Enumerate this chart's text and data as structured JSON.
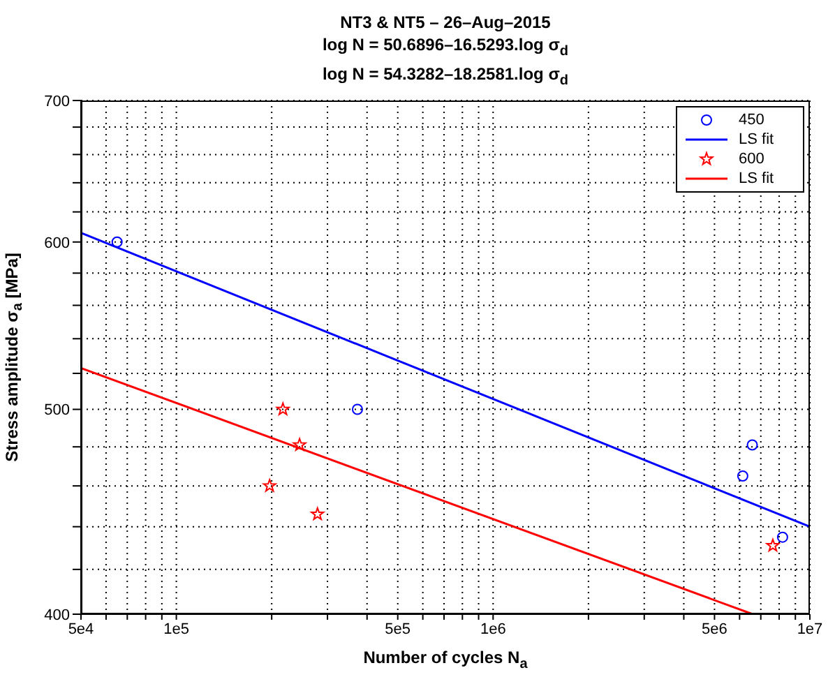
{
  "chart_data": {
    "type": "scatter",
    "title": "NT3 & NT5  – 26–Aug–2015\nlog N = 50.6896–16.5293.log σ$_{d}$\nlog N = 54.3282–18.2581.log σ$_{d}$",
    "xlabel": "Number of cycles N$_{a}$",
    "ylabel": "Stress amplitude σ$_{a}$ [MPa]",
    "log": "xy",
    "grid": true,
    "legend": "top right",
    "line_style": "solid",
    "xlim": [
      50000,
      10000000
    ],
    "ylim": [
      400,
      700
    ],
    "xticks": [
      {
        "value": 50000,
        "label": "5e4"
      },
      {
        "value": 60000,
        "label": null
      },
      {
        "value": 70000,
        "label": null
      },
      {
        "value": 80000,
        "label": null
      },
      {
        "value": 90000,
        "label": null
      },
      {
        "value": 100000,
        "label": "1e5"
      },
      {
        "value": 200000,
        "label": null
      },
      {
        "value": 300000,
        "label": null
      },
      {
        "value": 400000,
        "label": null
      },
      {
        "value": 500000,
        "label": "5e5"
      },
      {
        "value": 600000,
        "label": null
      },
      {
        "value": 700000,
        "label": null
      },
      {
        "value": 800000,
        "label": null
      },
      {
        "value": 900000,
        "label": null
      },
      {
        "value": 1000000,
        "label": "1e6"
      },
      {
        "value": 2000000,
        "label": null
      },
      {
        "value": 3000000,
        "label": null
      },
      {
        "value": 4000000,
        "label": null
      },
      {
        "value": 5000000,
        "label": "5e6"
      },
      {
        "value": 6000000,
        "label": null
      },
      {
        "value": 7000000,
        "label": null
      },
      {
        "value": 8000000,
        "label": null
      },
      {
        "value": 9000000,
        "label": null
      },
      {
        "value": 10000000,
        "label": "1e7"
      }
    ],
    "yticks": [
      400,
      {
        "value": 420,
        "label": null
      },
      {
        "value": 440,
        "label": null
      },
      {
        "value": 460,
        "label": null
      },
      {
        "value": 480,
        "label": null
      },
      500,
      {
        "value": 520,
        "label": null
      },
      {
        "value": 540,
        "label": null
      },
      {
        "value": 560,
        "label": null
      },
      {
        "value": 580,
        "label": null
      },
      600,
      {
        "value": 620,
        "label": null
      },
      {
        "value": 640,
        "label": null
      },
      {
        "value": 660,
        "label": null
      },
      {
        "value": 680,
        "label": null
      },
      700
    ],
    "series": [
      {
        "name": "450",
        "marker": "circle",
        "color": "#0000ff",
        "x": [
          65000,
          373000,
          6140000,
          6580000,
          8200000
        ],
        "values": [
          600,
          500,
          465,
          481,
          435
        ]
      },
      {
        "name": "LS fit",
        "type": "line",
        "marker": "none",
        "color": "#0000ff",
        "x": [
          50000,
          10000000
        ],
        "values": [
          606,
          440
        ]
      },
      {
        "name": "600",
        "marker": "star",
        "color": "#ff0000",
        "x": [
          217000,
          245000,
          197000,
          279000,
          7640000
        ],
        "values": [
          500,
          481,
          460,
          446,
          431
        ]
      },
      {
        "name": "LS fit",
        "type": "line",
        "marker": "none",
        "color": "#ff0000",
        "x": [
          50000,
          6600000
        ],
        "values": [
          523,
          400
        ]
      }
    ]
  }
}
